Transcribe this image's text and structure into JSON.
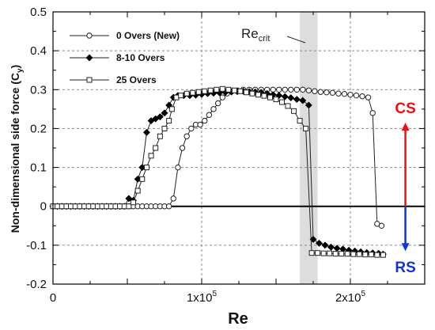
{
  "chart_data": {
    "type": "line",
    "xlabel": "Re",
    "ylabel": "Non-dimensional side force (C",
    "ylabel_sub": "y",
    "ylabel_close": ")",
    "xlim": [
      0,
      250000
    ],
    "ylim": [
      -0.2,
      0.5
    ],
    "x_ticks": [
      {
        "value": 0,
        "label": "0"
      },
      {
        "value": 100000,
        "label": "1x10",
        "sup": "5"
      },
      {
        "value": 200000,
        "label": "2x10",
        "sup": "5"
      }
    ],
    "y_ticks": [
      {
        "value": -0.2,
        "label": "-0.2"
      },
      {
        "value": -0.1,
        "label": "-0.1"
      },
      {
        "value": 0,
        "label": "0"
      },
      {
        "value": 0.1,
        "label": "0.1"
      },
      {
        "value": 0.2,
        "label": "0.2"
      },
      {
        "value": 0.3,
        "label": "0.3"
      },
      {
        "value": 0.4,
        "label": "0.4"
      },
      {
        "value": 0.5,
        "label": "0.5"
      }
    ],
    "grid": true,
    "legend_position": "top-left",
    "critical_band": {
      "x_range": [
        166000,
        178000
      ],
      "label": "Re",
      "label_sub": "crit"
    },
    "annotations": {
      "cs": {
        "label": "CS",
        "color": "#ee1111"
      },
      "rs": {
        "label": "RS",
        "color": "#1133dd"
      },
      "arrow_x": 237000,
      "arrow_top": 0.215,
      "arrow_bottom": -0.115
    },
    "series": [
      {
        "name": "0 Overs (New)",
        "marker": "circle",
        "points": [
          [
            0,
            0
          ],
          [
            3000,
            0
          ],
          [
            6000,
            0
          ],
          [
            9000,
            0
          ],
          [
            12000,
            0
          ],
          [
            15000,
            0
          ],
          [
            18000,
            0
          ],
          [
            21000,
            0
          ],
          [
            24000,
            0
          ],
          [
            27000,
            0
          ],
          [
            30000,
            0
          ],
          [
            33000,
            0
          ],
          [
            36000,
            0
          ],
          [
            39000,
            0
          ],
          [
            42000,
            0
          ],
          [
            45000,
            0
          ],
          [
            48000,
            0
          ],
          [
            51000,
            0
          ],
          [
            54000,
            0
          ],
          [
            57000,
            0
          ],
          [
            60000,
            0
          ],
          [
            63000,
            0
          ],
          [
            66000,
            0
          ],
          [
            69000,
            0
          ],
          [
            72000,
            0
          ],
          [
            75000,
            0
          ],
          [
            78000,
            0
          ],
          [
            81000,
            0.02
          ],
          [
            84000,
            0.1
          ],
          [
            87000,
            0.15
          ],
          [
            90000,
            0.18
          ],
          [
            93000,
            0.2
          ],
          [
            96000,
            0.21
          ],
          [
            99000,
            0.21
          ],
          [
            102000,
            0.22
          ],
          [
            105000,
            0.235
          ],
          [
            108000,
            0.25
          ],
          [
            111000,
            0.265
          ],
          [
            114000,
            0.28
          ],
          [
            117000,
            0.29
          ],
          [
            120000,
            0.295
          ],
          [
            124000,
            0.298
          ],
          [
            128000,
            0.3
          ],
          [
            132000,
            0.3
          ],
          [
            136000,
            0.3
          ],
          [
            140000,
            0.3
          ],
          [
            144000,
            0.3
          ],
          [
            148000,
            0.3
          ],
          [
            152000,
            0.3
          ],
          [
            156000,
            0.3
          ],
          [
            160000,
            0.3
          ],
          [
            164000,
            0.3
          ],
          [
            168000,
            0.3
          ],
          [
            172000,
            0.298
          ],
          [
            176000,
            0.296
          ],
          [
            180000,
            0.294
          ],
          [
            184000,
            0.293
          ],
          [
            188000,
            0.292
          ],
          [
            192000,
            0.29
          ],
          [
            196000,
            0.289
          ],
          [
            200000,
            0.287
          ],
          [
            204000,
            0.285
          ],
          [
            208000,
            0.283
          ],
          [
            212000,
            0.28
          ],
          [
            215000,
            0.24
          ],
          [
            218000,
            -0.045
          ],
          [
            221000,
            -0.05
          ]
        ]
      },
      {
        "name": "8-10 Overs",
        "marker": "diamond",
        "points": [
          [
            0,
            0
          ],
          [
            3000,
            0
          ],
          [
            6000,
            0
          ],
          [
            9000,
            0
          ],
          [
            12000,
            0
          ],
          [
            15000,
            0
          ],
          [
            18000,
            0
          ],
          [
            21000,
            0
          ],
          [
            24000,
            0
          ],
          [
            27000,
            0
          ],
          [
            30000,
            0
          ],
          [
            33000,
            0
          ],
          [
            36000,
            0
          ],
          [
            39000,
            0
          ],
          [
            42000,
            0
          ],
          [
            45000,
            0
          ],
          [
            48000,
            0
          ],
          [
            51000,
            0.02
          ],
          [
            54000,
            0.015
          ],
          [
            57000,
            0.07
          ],
          [
            60000,
            0.1
          ],
          [
            63000,
            0.19
          ],
          [
            66000,
            0.22
          ],
          [
            69000,
            0.225
          ],
          [
            72000,
            0.23
          ],
          [
            75000,
            0.24
          ],
          [
            78000,
            0.26
          ],
          [
            81000,
            0.28
          ],
          [
            84000,
            0.285
          ],
          [
            88000,
            0.285
          ],
          [
            92000,
            0.285
          ],
          [
            96000,
            0.286
          ],
          [
            100000,
            0.288
          ],
          [
            104000,
            0.29
          ],
          [
            108000,
            0.291
          ],
          [
            112000,
            0.292
          ],
          [
            116000,
            0.293
          ],
          [
            120000,
            0.294
          ],
          [
            124000,
            0.295
          ],
          [
            128000,
            0.296
          ],
          [
            132000,
            0.295
          ],
          [
            136000,
            0.294
          ],
          [
            140000,
            0.293
          ],
          [
            144000,
            0.29
          ],
          [
            148000,
            0.287
          ],
          [
            152000,
            0.285
          ],
          [
            156000,
            0.282
          ],
          [
            160000,
            0.279
          ],
          [
            164000,
            0.275
          ],
          [
            168000,
            0.272
          ],
          [
            172000,
            0.26
          ],
          [
            175000,
            -0.085
          ],
          [
            179000,
            -0.095
          ],
          [
            183000,
            -0.1
          ],
          [
            187000,
            -0.105
          ],
          [
            191000,
            -0.108
          ],
          [
            195000,
            -0.11
          ],
          [
            199000,
            -0.113
          ],
          [
            203000,
            -0.115
          ],
          [
            207000,
            -0.117
          ],
          [
            211000,
            -0.119
          ],
          [
            215000,
            -0.12
          ],
          [
            219000,
            -0.121
          ],
          [
            222000,
            -0.123
          ]
        ]
      },
      {
        "name": "25 Overs",
        "marker": "square",
        "points": [
          [
            0,
            0
          ],
          [
            3000,
            0
          ],
          [
            6000,
            0
          ],
          [
            9000,
            0
          ],
          [
            12000,
            0
          ],
          [
            15000,
            0
          ],
          [
            18000,
            0
          ],
          [
            21000,
            0
          ],
          [
            24000,
            0
          ],
          [
            27000,
            0
          ],
          [
            30000,
            0
          ],
          [
            33000,
            0
          ],
          [
            36000,
            0
          ],
          [
            39000,
            0
          ],
          [
            42000,
            0
          ],
          [
            45000,
            0
          ],
          [
            48000,
            0
          ],
          [
            51000,
            0
          ],
          [
            54000,
            0.01
          ],
          [
            57000,
            0.04
          ],
          [
            60000,
            0.07
          ],
          [
            63000,
            0.1
          ],
          [
            66000,
            0.13
          ],
          [
            69000,
            0.15
          ],
          [
            72000,
            0.18
          ],
          [
            75000,
            0.2
          ],
          [
            78000,
            0.22
          ],
          [
            80000,
            0.25
          ],
          [
            83000,
            0.28
          ],
          [
            86000,
            0.285
          ],
          [
            90000,
            0.29
          ],
          [
            94000,
            0.292
          ],
          [
            98000,
            0.294
          ],
          [
            102000,
            0.296
          ],
          [
            106000,
            0.298
          ],
          [
            110000,
            0.3
          ],
          [
            114000,
            0.302
          ],
          [
            118000,
            0.3
          ],
          [
            122000,
            0.298
          ],
          [
            126000,
            0.296
          ],
          [
            130000,
            0.293
          ],
          [
            134000,
            0.29
          ],
          [
            138000,
            0.287
          ],
          [
            142000,
            0.284
          ],
          [
            146000,
            0.28
          ],
          [
            150000,
            0.275
          ],
          [
            154000,
            0.268
          ],
          [
            158000,
            0.258
          ],
          [
            162000,
            0.245
          ],
          [
            166000,
            0.22
          ],
          [
            170000,
            0.2
          ],
          [
            174000,
            -0.12
          ],
          [
            178000,
            -0.12
          ],
          [
            182000,
            -0.121
          ],
          [
            186000,
            -0.121
          ],
          [
            190000,
            -0.122
          ],
          [
            194000,
            -0.122
          ],
          [
            198000,
            -0.122
          ],
          [
            202000,
            -0.123
          ],
          [
            206000,
            -0.123
          ],
          [
            210000,
            -0.124
          ],
          [
            214000,
            -0.124
          ],
          [
            218000,
            -0.125
          ],
          [
            222000,
            -0.125
          ]
        ]
      }
    ]
  }
}
